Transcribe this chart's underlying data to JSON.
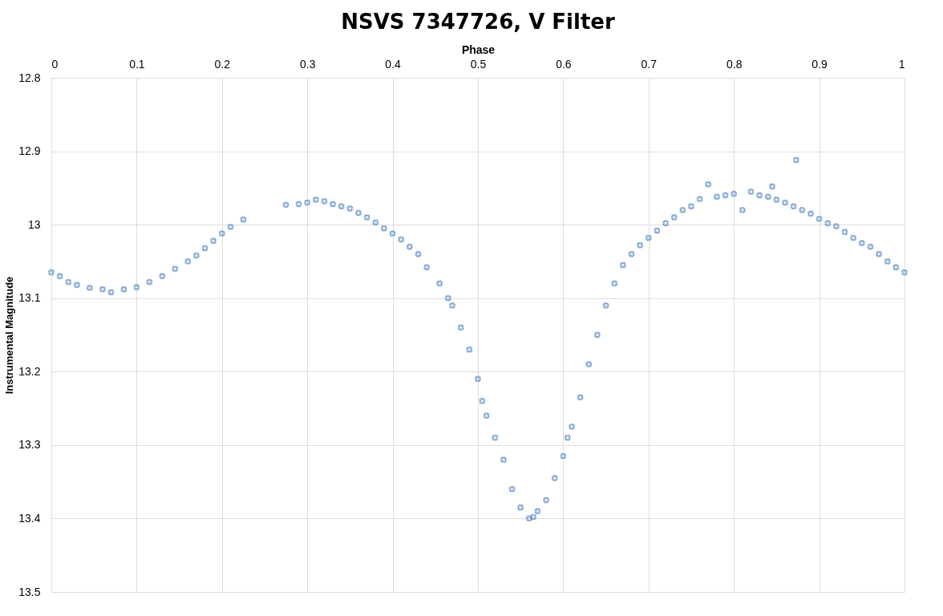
{
  "chart_data": {
    "type": "scatter",
    "title": "NSVS 7347726, V Filter",
    "xlabel": "Phase",
    "ylabel": "Instrumental Magnitude",
    "x": [
      0,
      0.01,
      0.02,
      0.03,
      0.045,
      0.06,
      0.07,
      0.085,
      0.1,
      0.115,
      0.13,
      0.145,
      0.16,
      0.17,
      0.18,
      0.19,
      0.2,
      0.21,
      0.225,
      0.275,
      0.29,
      0.3,
      0.31,
      0.32,
      0.33,
      0.34,
      0.35,
      0.36,
      0.37,
      0.38,
      0.39,
      0.4,
      0.41,
      0.42,
      0.43,
      0.44,
      0.455,
      0.465,
      0.47,
      0.48,
      0.49,
      0.5,
      0.505,
      0.51,
      0.52,
      0.53,
      0.54,
      0.55,
      0.56,
      0.565,
      0.57,
      0.58,
      0.59,
      0.6,
      0.605,
      0.61,
      0.62,
      0.63,
      0.64,
      0.65,
      0.66,
      0.67,
      0.68,
      0.69,
      0.7,
      0.71,
      0.72,
      0.73,
      0.74,
      0.75,
      0.76,
      0.77,
      0.78,
      0.79,
      0.8,
      0.81,
      0.82,
      0.83,
      0.84,
      0.845,
      0.85,
      0.86,
      0.87,
      0.873,
      0.88,
      0.89,
      0.9,
      0.91,
      0.92,
      0.93,
      0.94,
      0.95,
      0.96,
      0.97,
      0.98,
      0.99,
      1
    ],
    "values": [
      13.065,
      13.07,
      13.078,
      13.082,
      13.086,
      13.088,
      13.092,
      13.088,
      13.085,
      13.078,
      13.07,
      13.06,
      13.05,
      13.042,
      13.032,
      13.022,
      13.012,
      13.003,
      12.993,
      12.973,
      12.972,
      12.97,
      12.966,
      12.968,
      12.972,
      12.975,
      12.978,
      12.984,
      12.99,
      12.997,
      13.005,
      13.012,
      13.02,
      13.03,
      13.04,
      13.058,
      13.08,
      13.1,
      13.11,
      13.14,
      13.17,
      13.21,
      13.24,
      13.26,
      13.29,
      13.32,
      13.36,
      13.385,
      13.4,
      13.398,
      13.39,
      13.375,
      13.345,
      13.315,
      13.29,
      13.275,
      13.235,
      13.19,
      13.15,
      13.11,
      13.08,
      13.055,
      13.04,
      13.028,
      13.018,
      13.008,
      12.998,
      12.99,
      12.98,
      12.975,
      12.965,
      12.945,
      12.962,
      12.96,
      12.958,
      12.98,
      12.955,
      12.96,
      12.962,
      12.948,
      12.966,
      12.97,
      12.975,
      12.912,
      12.98,
      12.985,
      12.992,
      12.998,
      13.002,
      13.01,
      13.018,
      13.025,
      13.03,
      13.04,
      13.05,
      13.058,
      13.065
    ],
    "color": "#4f81bd",
    "marker": "cross",
    "grid": true,
    "xlim": [
      0,
      1
    ],
    "xticks": [
      0,
      0.1,
      0.2,
      0.3,
      0.4,
      0.5,
      0.6,
      0.7,
      0.8,
      0.9,
      1
    ],
    "ylim": [
      13.5,
      12.8
    ],
    "yticks": [
      12.8,
      12.9,
      13,
      13.1,
      13.2,
      13.3,
      13.4,
      13.5
    ]
  }
}
